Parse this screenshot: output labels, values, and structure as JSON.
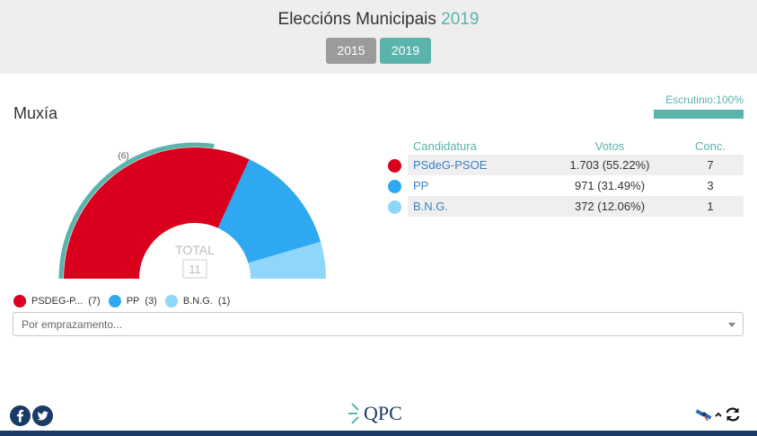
{
  "header": {
    "title": "Eleccións Municipais",
    "year": "2019",
    "years": [
      "2015",
      "2019"
    ]
  },
  "municipality": "Muxía",
  "scrutiny": {
    "label": "Escrutinio:100%",
    "percent": 100
  },
  "chart_data": {
    "type": "pie",
    "total_label": "TOTAL",
    "total_seats": "11",
    "previous_label": "(6)",
    "series": [
      {
        "name": "PSdeG-PSOE",
        "seats": 7,
        "color": "#d9001d"
      },
      {
        "name": "PP",
        "seats": 3,
        "color": "#2fa8f2"
      },
      {
        "name": "B.N.G.",
        "seats": 1,
        "color": "#8fd6fb"
      }
    ],
    "majority_color": "#5ab4ab"
  },
  "table": {
    "headers": {
      "party": "Candidatura",
      "votes": "Votos",
      "seats": "Conc."
    },
    "rows": [
      {
        "party": "PSdeG-PSOE",
        "votes": "1.703 (55.22%)",
        "seats": "7",
        "color": "#d9001d"
      },
      {
        "party": "PP",
        "votes": "971 (31.49%)",
        "seats": "3",
        "color": "#2fa8f2"
      },
      {
        "party": "B.N.G.",
        "votes": "372 (12.06%)",
        "seats": "1",
        "color": "#8fd6fb"
      }
    ]
  },
  "legend": [
    {
      "name": "PSDEG-P...",
      "seats": "(7)",
      "color": "#d9001d"
    },
    {
      "name": "PP",
      "seats": "(3)",
      "color": "#2fa8f2"
    },
    {
      "name": "B.N.G.",
      "seats": "(1)",
      "color": "#8fd6fb"
    }
  ],
  "place_select": {
    "placeholder": "Por emprazamento..."
  },
  "footer": {
    "logo_text": "QPC",
    "icons": [
      "facebook-icon",
      "twitter-icon",
      "satellite-icon",
      "chevron-up-icon",
      "refresh-icon"
    ]
  }
}
